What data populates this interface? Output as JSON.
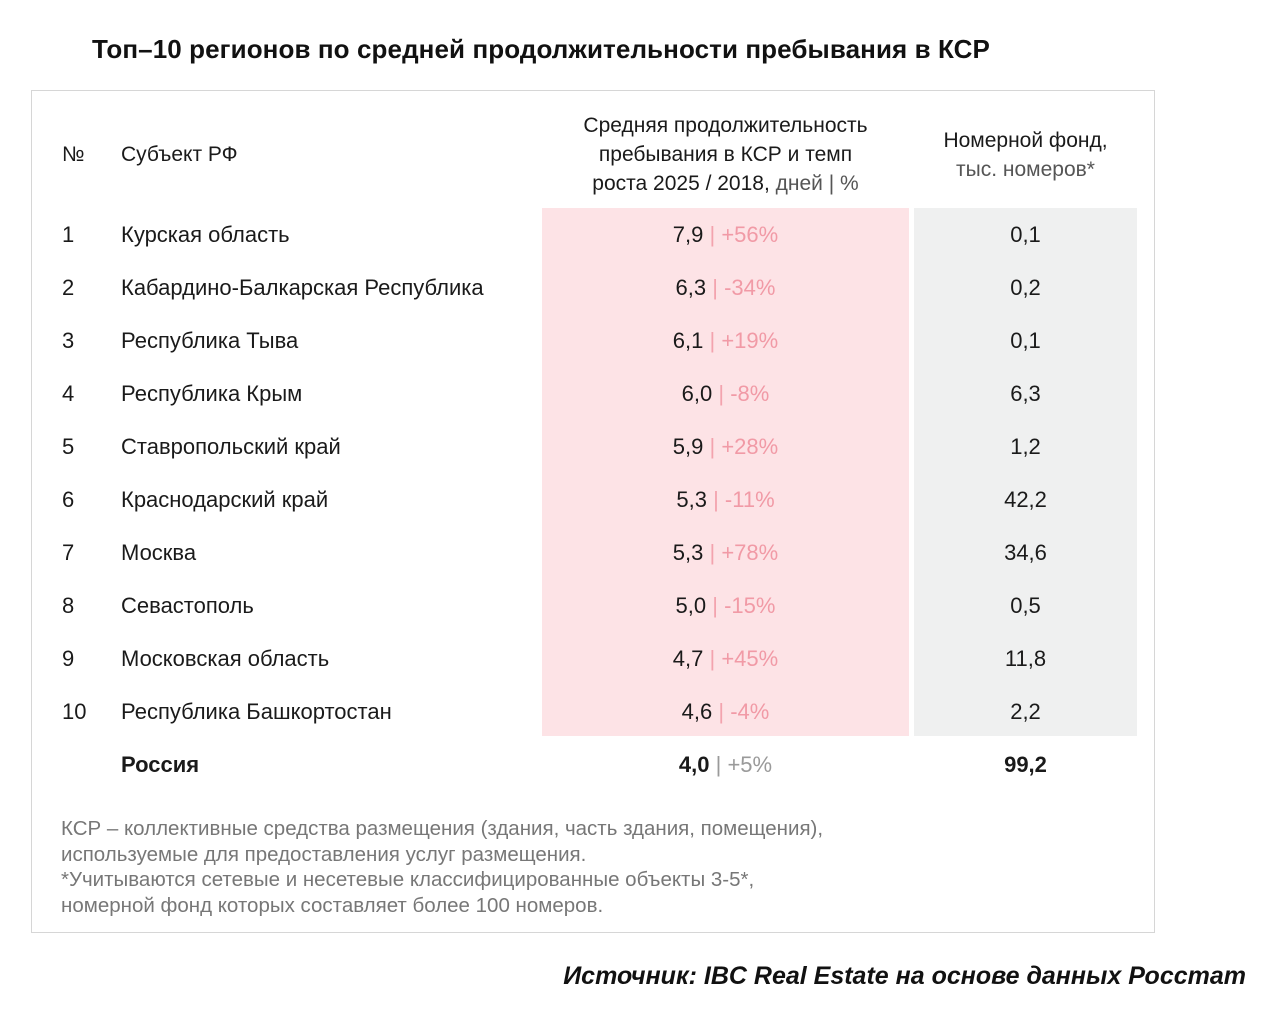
{
  "title": "Топ–10 регионов по средней продолжительности пребывания в КСР",
  "table": {
    "header": {
      "num": "№",
      "subject": "Субъект РФ",
      "stay_line1": "Средняя продолжительность",
      "stay_line2": "пребывания в КСР и темп",
      "stay_line3_bold": "роста 2025 / 2018,",
      "stay_line3_unit": " дней | %",
      "fund_line1": "Номерной фонд,",
      "fund_line2": "тыс. номеров*"
    },
    "rows": [
      {
        "num": "1",
        "subject": "Курская область",
        "stay": "7,9",
        "growth": "+56%",
        "fund": "0,1"
      },
      {
        "num": "2",
        "subject": "Кабардино-Балкарская Республика",
        "stay": "6,3",
        "growth": "-34%",
        "fund": "0,2"
      },
      {
        "num": "3",
        "subject": "Республика Тыва",
        "stay": "6,1",
        "growth": "+19%",
        "fund": "0,1"
      },
      {
        "num": "4",
        "subject": "Республика Крым",
        "stay": "6,0",
        "growth": "-8%",
        "fund": "6,3"
      },
      {
        "num": "5",
        "subject": "Ставропольский край",
        "stay": "5,9",
        "growth": "+28%",
        "fund": "1,2"
      },
      {
        "num": "6",
        "subject": "Краснодарский край",
        "stay": "5,3",
        "growth": "-11%",
        "fund": "42,2"
      },
      {
        "num": "7",
        "subject": "Москва",
        "stay": "5,3",
        "growth": "+78%",
        "fund": "34,6"
      },
      {
        "num": "8",
        "subject": "Севастополь",
        "stay": "5,0",
        "growth": "-15%",
        "fund": "0,5"
      },
      {
        "num": "9",
        "subject": "Московская область",
        "stay": "4,7",
        "growth": "+45%",
        "fund": "11,8"
      },
      {
        "num": "10",
        "subject": "Республика Башкортостан",
        "stay": "4,6",
        "growth": "-4%",
        "fund": "2,2"
      }
    ],
    "total": {
      "subject": "Россия",
      "stay": "4,0",
      "growth": "+5%",
      "fund": "99,2"
    },
    "separator": "|"
  },
  "notes": [
    "КСР – коллективные средства размещения (здания, часть здания, помещения),",
    "используемые для предоставления услуг размещения.",
    "*Учитываются сетевые и несетевые классифицированные объекты 3-5*,",
    "номерной фонд которых составляет более 100 номеров."
  ],
  "source": "Источник: IBC Real Estate на основе данных Росстат"
}
